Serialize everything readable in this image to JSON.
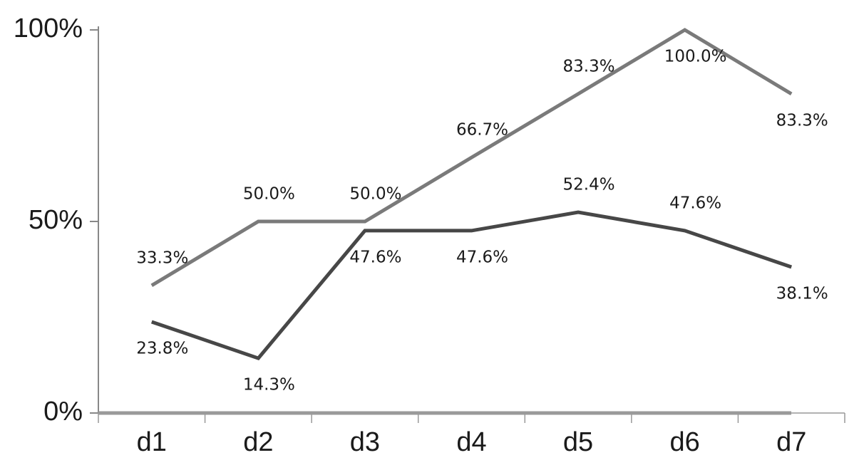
{
  "chart_data": {
    "type": "line",
    "categories": [
      "d1",
      "d2",
      "d3",
      "d4",
      "d5",
      "d6",
      "d7"
    ],
    "series": [
      {
        "color": "#7a7a7a",
        "values": [
          33.3,
          50.0,
          50.0,
          66.7,
          83.3,
          100.0,
          83.3
        ],
        "value_labels": [
          "33.3%",
          "50.0%",
          "50.0%",
          "66.7%",
          "83.3%",
          "100.0%",
          "83.3%"
        ]
      },
      {
        "color": "#474747",
        "values": [
          23.8,
          14.3,
          47.6,
          47.6,
          52.4,
          47.6,
          38.1
        ],
        "value_labels": [
          "23.8%",
          "14.3%",
          "47.6%",
          "47.6%",
          "52.4%",
          "47.6%",
          "38.1%"
        ]
      }
    ],
    "ylim": [
      0,
      100
    ],
    "yticks": [
      {
        "value": 0,
        "label": "0%"
      },
      {
        "value": 50,
        "label": "50%"
      },
      {
        "value": 100,
        "label": "100%"
      }
    ]
  }
}
